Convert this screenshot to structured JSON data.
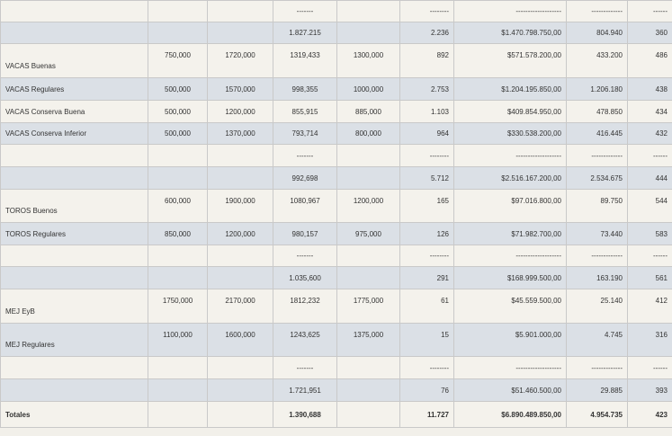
{
  "rows": [
    {
      "label": "",
      "cells": [
        "",
        "",
        "-------",
        "",
        "--------",
        "-------------------",
        "-------------",
        "------"
      ],
      "style": "cream",
      "h": 24
    },
    {
      "label": "",
      "cells": [
        "",
        "",
        "1.827.215",
        "",
        "2.236",
        "$1.470.798.750,00",
        "804.940",
        "360"
      ],
      "style": "gray",
      "h": 24
    },
    {
      "label": "VACAS Buenas",
      "cells": [
        "750,000",
        "1720,000",
        "1319,433",
        "1300,000",
        "892",
        "$571.578.200,00",
        "433.200",
        "486"
      ],
      "style": "cream",
      "h": 38,
      "split": true
    },
    {
      "label": "VACAS Regulares",
      "cells": [
        "500,000",
        "1570,000",
        "998,355",
        "1000,000",
        "2.753",
        "$1.204.195.850,00",
        "1.206.180",
        "438"
      ],
      "style": "gray",
      "h": 25
    },
    {
      "label": "VACAS Conserva Buena",
      "cells": [
        "500,000",
        "1200,000",
        "855,915",
        "885,000",
        "1.103",
        "$409.854.950,00",
        "478.850",
        "434"
      ],
      "style": "cream",
      "h": 25
    },
    {
      "label": "VACAS Conserva Inferior",
      "cells": [
        "500,000",
        "1370,000",
        "793,714",
        "800,000",
        "964",
        "$330.538.200,00",
        "416.445",
        "432"
      ],
      "style": "gray",
      "h": 24
    },
    {
      "label": "",
      "cells": [
        "",
        "",
        "-------",
        "",
        "--------",
        "-------------------",
        "-------------",
        "------"
      ],
      "style": "cream",
      "h": 25
    },
    {
      "label": "",
      "cells": [
        "",
        "",
        "992,698",
        "",
        "5.712",
        "$2.516.167.200,00",
        "2.534.675",
        "444"
      ],
      "style": "gray",
      "h": 25
    },
    {
      "label": "TOROS Buenos",
      "cells": [
        "600,000",
        "1900,000",
        "1080,967",
        "1200,000",
        "165",
        "$97.016.800,00",
        "89.750",
        "544"
      ],
      "style": "cream",
      "h": 37,
      "split": true
    },
    {
      "label": "TOROS Regulares",
      "cells": [
        "850,000",
        "1200,000",
        "980,157",
        "975,000",
        "126",
        "$71.982.700,00",
        "73.440",
        "583"
      ],
      "style": "gray",
      "h": 25
    },
    {
      "label": "",
      "cells": [
        "",
        "",
        "-------",
        "",
        "--------",
        "-------------------",
        "-------------",
        "------"
      ],
      "style": "cream",
      "h": 24
    },
    {
      "label": "",
      "cells": [
        "",
        "",
        "1.035,600",
        "",
        "291",
        "$168.999.500,00",
        "163.190",
        "561"
      ],
      "style": "gray",
      "h": 25
    },
    {
      "label": "MEJ EyB",
      "cells": [
        "1750,000",
        "2170,000",
        "1812,232",
        "1775,000",
        "61",
        "$45.559.500,00",
        "25.140",
        "412"
      ],
      "style": "cream",
      "h": 38,
      "split": true
    },
    {
      "label": "MEJ Regulares",
      "cells": [
        "1100,000",
        "1600,000",
        "1243,625",
        "1375,000",
        "15",
        "$5.901.000,00",
        "4.745",
        "316"
      ],
      "style": "gray",
      "h": 37,
      "split": true
    },
    {
      "label": "",
      "cells": [
        "",
        "",
        "-------",
        "",
        "--------",
        "-------------------",
        "-------------",
        "------"
      ],
      "style": "cream",
      "h": 25
    },
    {
      "label": "",
      "cells": [
        "",
        "",
        "1.721,951",
        "",
        "76",
        "$51.460.500,00",
        "29.885",
        "393"
      ],
      "style": "gray",
      "h": 25
    }
  ],
  "totals": {
    "label": "Totales",
    "cells": [
      "",
      "",
      "1.390,688",
      "",
      "11.727",
      "$6.890.489.850,00",
      "4.954.735",
      "423"
    ]
  }
}
